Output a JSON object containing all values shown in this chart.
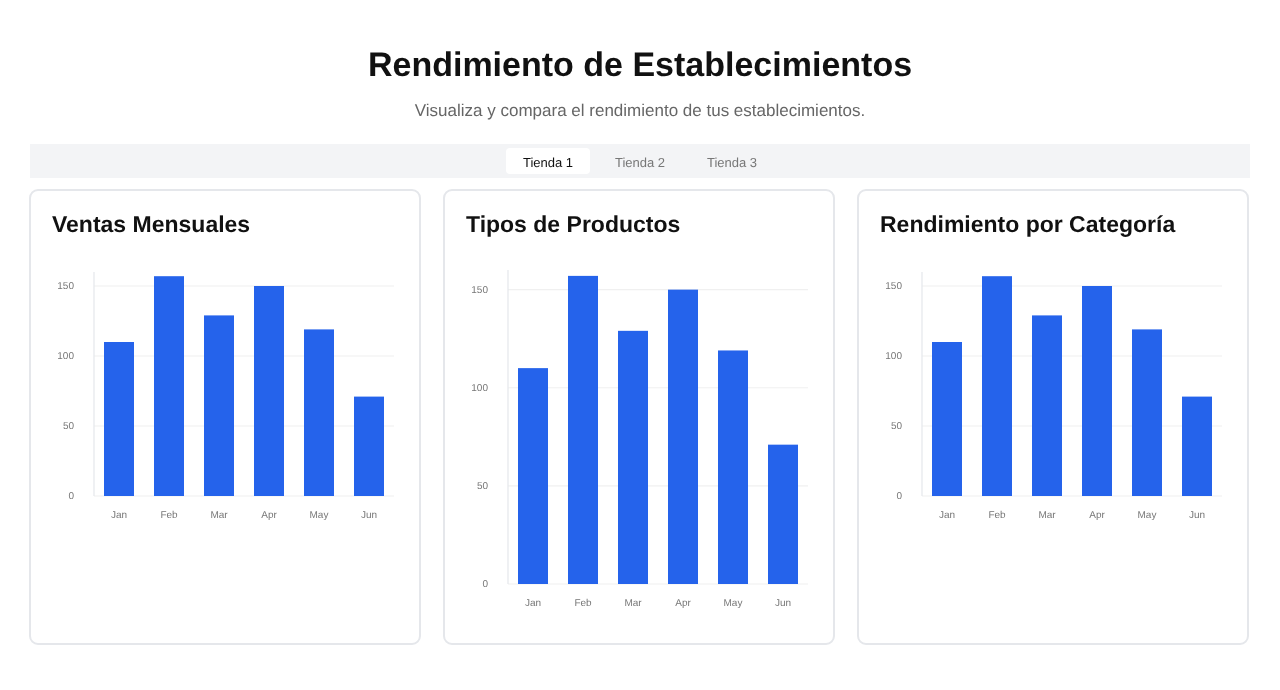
{
  "chart_data": [
    {
      "type": "other",
      "title": "Rendimiento de Establecimientos",
      "subtitle": "Visualiza y compara el rendimiento de tus establecimientos.",
      "annotations": [
        "Tienda 1",
        "Tienda 2",
        "Tienda 3"
      ]
    },
    {
      "type": "bar",
      "title": "Ventas Mensuales",
      "categories": [
        "Jan",
        "Feb",
        "Mar",
        "Apr",
        "May",
        "Jun"
      ],
      "values": [
        110,
        157,
        129,
        150,
        119,
        71
      ],
      "color": "#2563eb",
      "ylim": [
        0,
        160
      ],
      "yticks": [
        0,
        50,
        100,
        150
      ],
      "grid": "y"
    },
    {
      "type": "bar",
      "title": "Tipos de Productos",
      "categories": [
        "Jan",
        "Feb",
        "Mar",
        "Apr",
        "May",
        "Jun"
      ],
      "values": [
        110,
        157,
        129,
        150,
        119,
        71
      ],
      "color": "#2563eb",
      "ylim": [
        0,
        160
      ],
      "yticks": [
        0,
        50,
        100,
        150
      ],
      "grid": "y"
    },
    {
      "type": "bar",
      "title": "Rendimiento por Categoría",
      "categories": [
        "Jan",
        "Feb",
        "Mar",
        "Apr",
        "May",
        "Jun"
      ],
      "values": [
        110,
        157,
        129,
        150,
        119,
        71
      ],
      "color": "#2563eb",
      "ylim": [
        0,
        160
      ],
      "yticks": [
        0,
        50,
        100,
        150
      ],
      "grid": "y"
    }
  ]
}
